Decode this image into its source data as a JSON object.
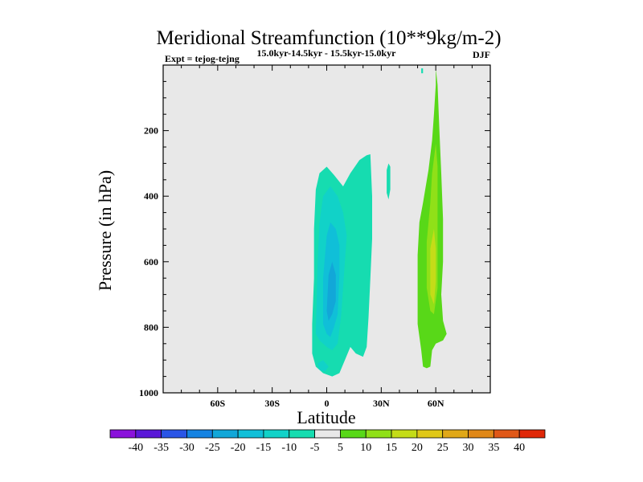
{
  "chart_data": {
    "type": "contour",
    "title": "Meridional Streamfunction (10**9kg/m-2)",
    "subtitle_left": "Expt = tejog-tejng",
    "subtitle_center": "15.0kyr-14.5kyr - 15.5kyr-15.0kyr",
    "subtitle_right": "DJF",
    "xlabel": "Latitude",
    "ylabel": "Pressure (in hPa)",
    "xlim": [
      -90,
      90
    ],
    "ylim": [
      1000,
      0
    ],
    "x_ticks": [
      {
        "value": -60,
        "label": "60S"
      },
      {
        "value": -30,
        "label": "30S"
      },
      {
        "value": 0,
        "label": "0"
      },
      {
        "value": 30,
        "label": "30N"
      },
      {
        "value": 60,
        "label": "60N"
      }
    ],
    "y_ticks": [
      {
        "value": 200,
        "label": "200"
      },
      {
        "value": 400,
        "label": "400"
      },
      {
        "value": 600,
        "label": "600"
      },
      {
        "value": 800,
        "label": "800"
      },
      {
        "value": 1000,
        "label": "1000"
      }
    ],
    "background_color": "#e8e8e8",
    "levels": [
      -40,
      -35,
      -30,
      -25,
      -20,
      -15,
      -10,
      -5,
      5,
      10,
      15,
      20,
      25,
      30,
      35,
      40
    ],
    "colorbar_colors": [
      "#8a12db",
      "#5a18d8",
      "#2a55e6",
      "#1583e2",
      "#12a7d8",
      "#10bfd8",
      "#11d2c8",
      "#16dcb0",
      "#e8e8e8",
      "#58d818",
      "#90e018",
      "#c4dc18",
      "#e0c818",
      "#e0a818",
      "#e08818",
      "#e05818",
      "#e02808"
    ],
    "regions": [
      {
        "name": "southern-cell-outer",
        "range": "-10 to -5",
        "color": "#16dcb0",
        "points": [
          [
            -8,
            790
          ],
          [
            -7,
            650
          ],
          [
            -7,
            500
          ],
          [
            -6,
            380
          ],
          [
            -4,
            330
          ],
          [
            0,
            310
          ],
          [
            4,
            335
          ],
          [
            9,
            370
          ],
          [
            13,
            330
          ],
          [
            18,
            290
          ],
          [
            22,
            275
          ],
          [
            24,
            272
          ],
          [
            25,
            400
          ],
          [
            25,
            530
          ],
          [
            24,
            650
          ],
          [
            23,
            770
          ],
          [
            22,
            860
          ],
          [
            20,
            890
          ],
          [
            16,
            880
          ],
          [
            13,
            860
          ],
          [
            10,
            900
          ],
          [
            7,
            940
          ],
          [
            3,
            950
          ],
          [
            -2,
            940
          ],
          [
            -6,
            920
          ],
          [
            -8,
            880
          ]
        ]
      },
      {
        "name": "northern-cell-upper",
        "range": "-10 to -5",
        "color": "#16dcb0",
        "points": [
          [
            15,
            480
          ],
          [
            20,
            420
          ],
          [
            23,
            320
          ],
          [
            24,
            330
          ],
          [
            23,
            440
          ],
          [
            20,
            520
          ],
          [
            16,
            540
          ]
        ]
      },
      {
        "name": "southern-cell-middle",
        "range": "-15 to -10",
        "color": "#11d2c8",
        "points": [
          [
            -6,
            820
          ],
          [
            -5,
            600
          ],
          [
            -4,
            480
          ],
          [
            -2,
            400
          ],
          [
            2,
            370
          ],
          [
            6,
            400
          ],
          [
            9,
            450
          ],
          [
            11,
            520
          ],
          [
            10,
            600
          ],
          [
            8,
            760
          ],
          [
            6,
            850
          ],
          [
            3,
            870
          ],
          [
            0,
            860
          ],
          [
            -4,
            840
          ]
        ]
      },
      {
        "name": "southern-cell-middle-patch",
        "range": "-15 to -10",
        "color": "#11d2c8",
        "points": [
          [
            -5,
            910
          ],
          [
            -2,
            900
          ],
          [
            1,
            920
          ],
          [
            -1,
            935
          ],
          [
            -4,
            930
          ]
        ]
      },
      {
        "name": "southern-cell-core",
        "range": "-20 to -15",
        "color": "#10bfd8",
        "points": [
          [
            -2,
            790
          ],
          [
            -2,
            650
          ],
          [
            0,
            520
          ],
          [
            2,
            480
          ],
          [
            5,
            500
          ],
          [
            7,
            550
          ],
          [
            7,
            640
          ],
          [
            6,
            760
          ],
          [
            4,
            800
          ],
          [
            2,
            830
          ],
          [
            0,
            820
          ]
        ]
      },
      {
        "name": "southern-cell-center",
        "range": "-25 to -20",
        "color": "#12a7d8",
        "points": [
          [
            0,
            750
          ],
          [
            1,
            640
          ],
          [
            3,
            600
          ],
          [
            5,
            640
          ],
          [
            5,
            720
          ],
          [
            3,
            760
          ],
          [
            1,
            780
          ]
        ]
      },
      {
        "name": "small-cell-30n",
        "range": "-10 to -5",
        "color": "#16dcb0",
        "points": [
          [
            34,
            300
          ],
          [
            35,
            310
          ],
          [
            35,
            380
          ],
          [
            34,
            410
          ],
          [
            33,
            390
          ],
          [
            33,
            320
          ]
        ]
      },
      {
        "name": "small-cell-top",
        "range": "-10 to -5",
        "color": "#16dcb0",
        "points": [
          [
            52,
            10
          ],
          [
            53,
            10
          ],
          [
            53,
            25
          ],
          [
            52,
            25
          ]
        ]
      },
      {
        "name": "northern-cell-outer",
        "range": "5 to 10",
        "color": "#58d818",
        "points": [
          [
            53,
            920
          ],
          [
            52,
            870
          ],
          [
            50,
            790
          ],
          [
            50,
            700
          ],
          [
            50,
            580
          ],
          [
            51,
            480
          ],
          [
            53,
            420
          ],
          [
            56,
            320
          ],
          [
            58,
            230
          ],
          [
            59,
            150
          ],
          [
            60,
            60
          ],
          [
            60,
            10
          ],
          [
            61,
            60
          ],
          [
            62,
            200
          ],
          [
            63,
            330
          ],
          [
            64,
            470
          ],
          [
            64,
            600
          ],
          [
            63,
            700
          ],
          [
            64,
            780
          ],
          [
            66,
            820
          ],
          [
            64,
            840
          ],
          [
            60,
            850
          ],
          [
            58,
            870
          ],
          [
            57,
            920
          ],
          [
            55,
            925
          ]
        ]
      },
      {
        "name": "northern-cell-inner",
        "range": "10 to 15",
        "color": "#90e018",
        "points": [
          [
            55,
            680
          ],
          [
            55,
            540
          ],
          [
            57,
            420
          ],
          [
            58,
            330
          ],
          [
            60,
            240
          ],
          [
            61,
            310
          ],
          [
            61,
            430
          ],
          [
            61,
            560
          ],
          [
            61,
            680
          ],
          [
            59,
            760
          ],
          [
            57,
            750
          ]
        ]
      },
      {
        "name": "northern-cell-center",
        "range": "15 to 20",
        "color": "#c4dc18",
        "points": [
          [
            57,
            700
          ],
          [
            57,
            560
          ],
          [
            59,
            500
          ],
          [
            60,
            560
          ],
          [
            60,
            660
          ],
          [
            59,
            730
          ]
        ]
      }
    ]
  }
}
